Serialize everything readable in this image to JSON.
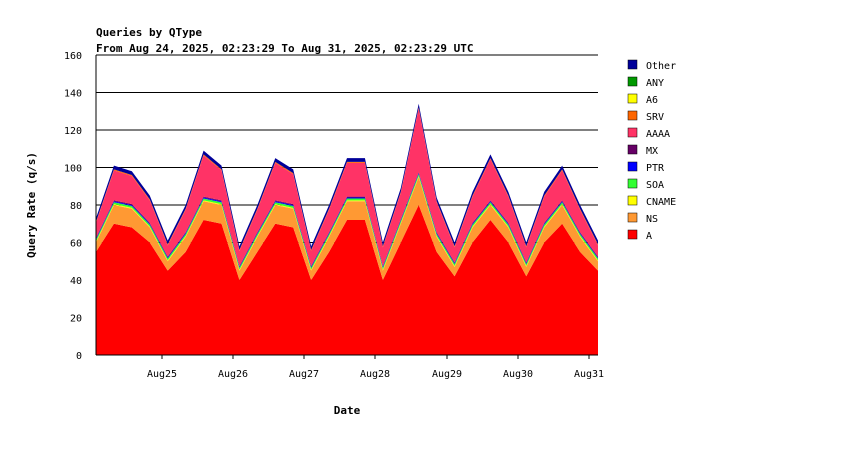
{
  "chart_data": {
    "type": "area",
    "stacked": true,
    "title": "Queries by QType",
    "subtitle": "From Aug 24, 2025, 02:23:29 To Aug 31, 2025, 02:23:29 UTC",
    "xlabel": "Date",
    "ylabel": "Query Rate (q/s)",
    "ylim": [
      0,
      160
    ],
    "yticks": [
      0,
      20,
      40,
      60,
      80,
      100,
      120,
      140,
      160
    ],
    "grid": "horizontal",
    "legend_position": "right",
    "xlim": [
      "Aug 24, 2025, 02:23:29",
      "Aug 31, 2025, 02:23:29"
    ],
    "xtick_labels": [
      "Aug25",
      "Aug26",
      "Aug27",
      "Aug28",
      "Aug29",
      "Aug30",
      "Aug31"
    ],
    "x_dates": [
      "Aug 24 02:23",
      "Aug 24 08:23",
      "Aug 24 14:23",
      "Aug 24 20:23",
      "Aug 25 02:23",
      "Aug 25 08:23",
      "Aug 25 14:23",
      "Aug 25 20:23",
      "Aug 26 02:23",
      "Aug 26 08:23",
      "Aug 26 14:23",
      "Aug 26 20:23",
      "Aug 27 02:23",
      "Aug 27 08:23",
      "Aug 27 14:23",
      "Aug 27 20:23",
      "Aug 28 02:23",
      "Aug 28 08:23",
      "Aug 28 14:23",
      "Aug 28 20:23",
      "Aug 29 02:23",
      "Aug 29 08:23",
      "Aug 29 14:23",
      "Aug 29 20:23",
      "Aug 30 02:23",
      "Aug 30 08:23",
      "Aug 30 14:23",
      "Aug 30 20:23",
      "Aug 31 02:23"
    ],
    "series": [
      {
        "name": "A",
        "color": "#ff0000",
        "values": [
          55,
          70,
          68,
          60,
          45,
          55,
          72,
          70,
          40,
          55,
          70,
          68,
          40,
          55,
          72,
          72,
          40,
          60,
          80,
          55,
          42,
          60,
          72,
          60,
          42,
          60,
          70,
          55,
          45
        ]
      },
      {
        "name": "NS",
        "color": "#ff9933",
        "values": [
          5,
          10,
          10,
          8,
          5,
          8,
          10,
          10,
          5,
          8,
          10,
          10,
          5,
          8,
          10,
          10,
          5,
          10,
          15,
          8,
          5,
          8,
          8,
          8,
          5,
          8,
          10,
          8,
          5
        ]
      },
      {
        "name": "CNAME",
        "color": "#ffff00",
        "values": [
          0.5,
          0.5,
          0.5,
          0.5,
          0.5,
          0.5,
          0.5,
          0.5,
          0.5,
          0.5,
          0.5,
          0.5,
          0.5,
          0.5,
          0.5,
          0.5,
          0.5,
          0.5,
          0.5,
          0.5,
          0.5,
          0.5,
          0.5,
          0.5,
          0.5,
          0.5,
          0.5,
          0.5,
          0.5
        ]
      },
      {
        "name": "SOA",
        "color": "#33ff33",
        "values": [
          1,
          1,
          1,
          1,
          1,
          1,
          1,
          1,
          1,
          1,
          1,
          1,
          1,
          1,
          1,
          1,
          1,
          1,
          1,
          1,
          1,
          1,
          1,
          1,
          1,
          1,
          1,
          1,
          1
        ]
      },
      {
        "name": "PTR",
        "color": "#0000ff",
        "values": [
          0.5,
          0.5,
          0.5,
          0.5,
          0.5,
          0.5,
          0.5,
          0.5,
          0.5,
          0.5,
          0.5,
          0.5,
          0.5,
          0.5,
          0.5,
          0.5,
          0.5,
          0.5,
          0.5,
          0.5,
          0.5,
          0.5,
          0.5,
          0.5,
          0.5,
          0.5,
          0.5,
          0.5,
          0.5
        ]
      },
      {
        "name": "MX",
        "color": "#660066",
        "values": [
          0.5,
          0.5,
          0.5,
          0.5,
          0.5,
          0.5,
          0.5,
          0.5,
          0.5,
          0.5,
          0.5,
          0.5,
          0.5,
          0.5,
          0.5,
          0.5,
          0.5,
          0.5,
          0.5,
          0.5,
          0.5,
          0.5,
          0.5,
          0.5,
          0.5,
          0.5,
          0.5,
          0.5,
          0.5
        ]
      },
      {
        "name": "AAAA",
        "color": "#ff3366",
        "values": [
          8,
          16,
          15,
          12,
          6,
          12,
          22,
          16,
          8,
          12,
          20,
          16,
          8,
          12,
          18,
          18,
          10,
          14,
          34,
          16,
          8,
          14,
          22,
          14,
          8,
          14,
          16,
          12,
          6
        ]
      },
      {
        "name": "SRV",
        "color": "#ff6600",
        "values": [
          0.5,
          0.5,
          0.5,
          0.5,
          0.5,
          0.5,
          0.5,
          0.5,
          0.5,
          0.5,
          0.5,
          0.5,
          0.5,
          0.5,
          0.5,
          0.5,
          0.5,
          0.5,
          0.5,
          0.5,
          0.5,
          0.5,
          0.5,
          0.5,
          0.5,
          0.5,
          0.5,
          0.5,
          0.5
        ]
      },
      {
        "name": "A6",
        "color": "#ffff00",
        "values": [
          0,
          0,
          0,
          0,
          0,
          0,
          0,
          0,
          0,
          0,
          0,
          0,
          0,
          0,
          0,
          0,
          0,
          0,
          0,
          0,
          0,
          0,
          0,
          0,
          0,
          0,
          0,
          0,
          0
        ]
      },
      {
        "name": "ANY",
        "color": "#009900",
        "values": [
          0,
          0,
          0,
          0,
          0,
          0,
          0,
          0,
          0,
          0,
          0,
          0,
          0,
          0,
          0,
          0,
          0,
          0,
          0,
          0,
          0,
          0,
          0,
          0,
          0,
          0,
          0,
          0,
          0
        ]
      },
      {
        "name": "Other",
        "color": "#000099",
        "values": [
          2,
          2,
          2,
          2,
          2,
          2,
          2,
          2,
          2,
          2,
          2,
          2,
          2,
          2,
          2,
          2,
          2,
          2,
          2,
          2,
          2,
          2,
          2,
          2,
          2,
          2,
          2,
          2,
          2
        ]
      }
    ],
    "legend_order": [
      "Other",
      "ANY",
      "A6",
      "SRV",
      "AAAA",
      "MX",
      "PTR",
      "SOA",
      "CNAME",
      "NS",
      "A"
    ]
  }
}
